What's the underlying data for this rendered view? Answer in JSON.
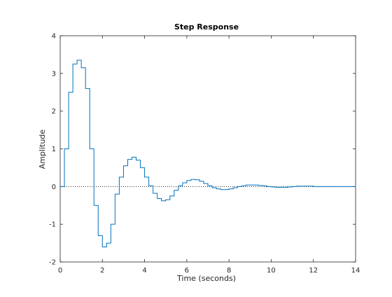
{
  "chart_data": {
    "type": "line",
    "style": "stairs",
    "title": "Step Response",
    "xlabel": "Time (seconds)",
    "ylabel": "Amplitude",
    "xlim": [
      0,
      14
    ],
    "ylim": [
      -2,
      4
    ],
    "xticks": [
      0,
      2,
      4,
      6,
      8,
      10,
      12,
      14
    ],
    "yticks": [
      -2,
      -1,
      0,
      1,
      2,
      3,
      4
    ],
    "grid": false,
    "reference_line": 0,
    "colors": {
      "line": "#0072bd",
      "axes": "#262626",
      "reference": "#000000"
    },
    "sample_time": 0.2,
    "series": [
      {
        "x": [
          0,
          0.2,
          0.4,
          0.6,
          0.8,
          1.0,
          1.2,
          1.4,
          1.6,
          1.8,
          2.0,
          2.2,
          2.4,
          2.6,
          2.8,
          3.0,
          3.2,
          3.4,
          3.6,
          3.8,
          4.0,
          4.2,
          4.4,
          4.6,
          4.8,
          5.0,
          5.2,
          5.4,
          5.6,
          5.8,
          6.0,
          6.2,
          6.4,
          6.6,
          6.8,
          7.0,
          7.2,
          7.4,
          7.6,
          7.8,
          8.0,
          8.2,
          8.4,
          8.6,
          8.8,
          9.0,
          9.2,
          9.4,
          9.6,
          9.8,
          10.0,
          10.2,
          10.4,
          10.6,
          10.8,
          11.0,
          11.2,
          11.4,
          11.6,
          11.8,
          12.0,
          12.2,
          12.4,
          12.6,
          12.8,
          13.0,
          13.2,
          13.4,
          13.6,
          13.8,
          14.0
        ],
        "values": [
          0,
          1.0,
          2.5,
          3.25,
          3.35,
          3.15,
          2.6,
          1.0,
          -0.5,
          -1.3,
          -1.6,
          -1.5,
          -1.0,
          -0.2,
          0.25,
          0.55,
          0.72,
          0.78,
          0.7,
          0.5,
          0.25,
          0.02,
          -0.18,
          -0.32,
          -0.38,
          -0.35,
          -0.25,
          -0.1,
          0.02,
          0.1,
          0.16,
          0.19,
          0.18,
          0.14,
          0.08,
          0.02,
          -0.03,
          -0.06,
          -0.08,
          -0.08,
          -0.06,
          -0.03,
          0.0,
          0.02,
          0.04,
          0.04,
          0.04,
          0.03,
          0.02,
          0.0,
          -0.01,
          -0.02,
          -0.02,
          -0.02,
          -0.01,
          0.0,
          0.01,
          0.01,
          0.01,
          0.01,
          0.0,
          0.0,
          0.0,
          0.0,
          0.0,
          0.0,
          0.0,
          0.0,
          0.0,
          0.0,
          0.0
        ]
      }
    ]
  }
}
